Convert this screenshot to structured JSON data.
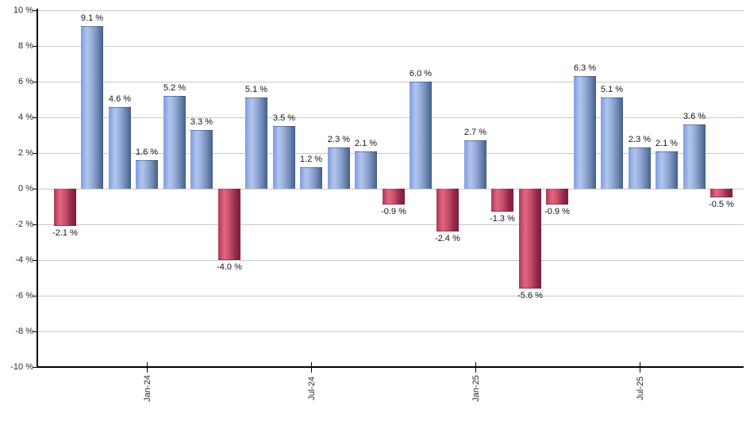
{
  "chart_data": {
    "type": "bar",
    "title": "",
    "xlabel": "",
    "ylabel": "",
    "ylim": [
      -10,
      10
    ],
    "y_tick_step": 2,
    "grid": "horizontal",
    "legend": "none",
    "y_ticks": [
      {
        "value": 10,
        "label": "10 %"
      },
      {
        "value": 8,
        "label": "8 %"
      },
      {
        "value": 6,
        "label": "6 %"
      },
      {
        "value": 4,
        "label": "4 %"
      },
      {
        "value": 2,
        "label": "2 %"
      },
      {
        "value": 0,
        "label": "0 %"
      },
      {
        "value": -2,
        "label": "-2 %"
      },
      {
        "value": -4,
        "label": "-4 %"
      },
      {
        "value": -6,
        "label": "-6 %"
      },
      {
        "value": -8,
        "label": "-8 %"
      },
      {
        "value": -10,
        "label": "-10 %"
      }
    ],
    "bars": [
      {
        "value": -2.1,
        "label": "-2.1 %"
      },
      {
        "value": 9.1,
        "label": "9.1 %"
      },
      {
        "value": 4.6,
        "label": "4.6 %"
      },
      {
        "value": 1.6,
        "label": "1.6 %"
      },
      {
        "value": 5.2,
        "label": "5.2 %"
      },
      {
        "value": 3.3,
        "label": "3.3 %"
      },
      {
        "value": -4.0,
        "label": "-4.0 %"
      },
      {
        "value": 5.1,
        "label": "5.1 %"
      },
      {
        "value": 3.5,
        "label": "3.5 %"
      },
      {
        "value": 1.2,
        "label": "1.2 %"
      },
      {
        "value": 2.3,
        "label": "2.3 %"
      },
      {
        "value": 2.1,
        "label": "2.1 %"
      },
      {
        "value": -0.9,
        "label": "-0.9 %"
      },
      {
        "value": 6.0,
        "label": "6.0 %"
      },
      {
        "value": -2.4,
        "label": "-2.4 %"
      },
      {
        "value": 2.7,
        "label": "2.7 %"
      },
      {
        "value": -1.3,
        "label": "-1.3 %"
      },
      {
        "value": -5.6,
        "label": "-5.6 %"
      },
      {
        "value": -0.9,
        "label": "-0.9 %"
      },
      {
        "value": 6.3,
        "label": "6.3 %"
      },
      {
        "value": 5.1,
        "label": "5.1 %"
      },
      {
        "value": 2.3,
        "label": "2.3 %"
      },
      {
        "value": 2.1,
        "label": "2.1 %"
      },
      {
        "value": 3.6,
        "label": "3.6 %"
      },
      {
        "value": -0.5,
        "label": "-0.5 %"
      }
    ],
    "x_ticks": [
      {
        "bar_index": 3,
        "label": "Jan-24"
      },
      {
        "bar_index": 9,
        "label": "Jul-24"
      },
      {
        "bar_index": 15,
        "label": "Jan-25"
      },
      {
        "bar_index": 21,
        "label": "Jul-25"
      }
    ],
    "colors": {
      "positive_gradient": [
        "#7f9ce0",
        "#b2c5ee",
        "#94abd8",
        "#6b85b0",
        "#445e86"
      ],
      "negative_gradient": [
        "#aa3a5a",
        "#e2677f",
        "#c74e68",
        "#942a4a",
        "#7b1e3d"
      ],
      "grid": "#c9c9c9",
      "axis": "#000000",
      "tick_text": "#2b2b33",
      "value_text": "#14141c",
      "background": "#ffffff"
    }
  }
}
